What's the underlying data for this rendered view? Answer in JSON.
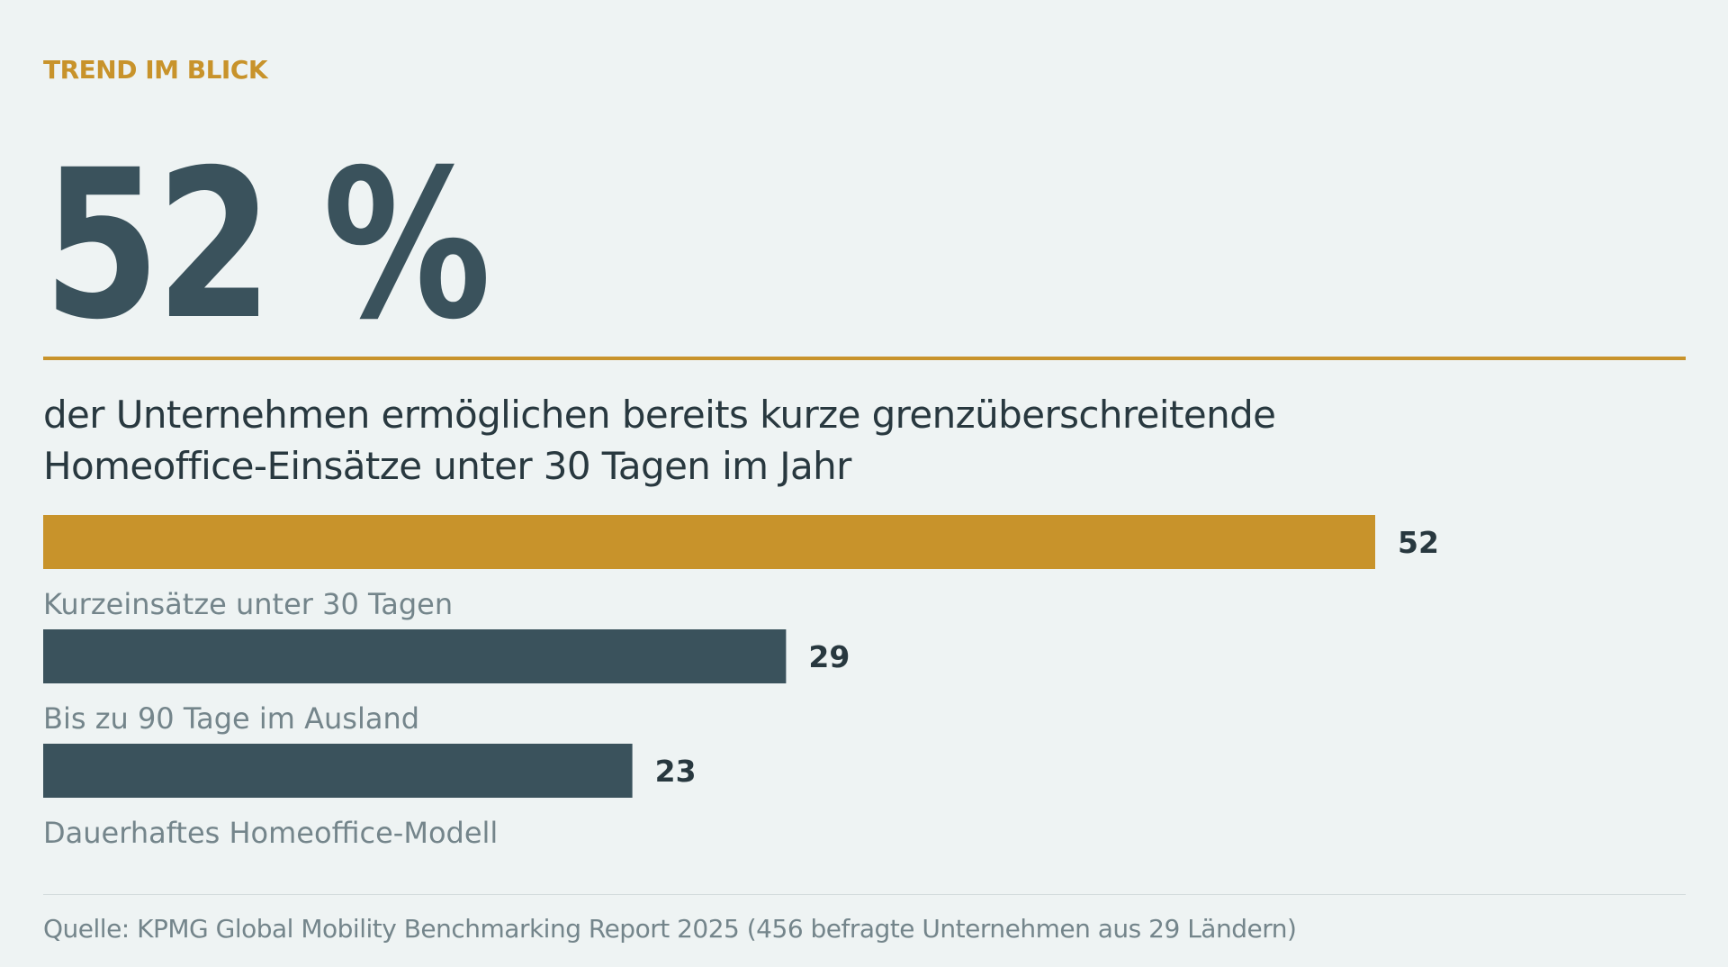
{
  "kicker": "TREND IM BLICK",
  "headline": "52 %",
  "subtitle_lines": [
    "der Unternehmen ermöglichen bereits kurze grenzüberschreitende",
    "Homeoffice-Einsätze unter 30 Tagen im Jahr"
  ],
  "source": "Quelle: KPMG Global Mobility Benchmarking Report 2025 (456 befragte Unternehmen aus 29 Ländern)",
  "colors": {
    "background": "#eef3f3",
    "accent": "#c8932b",
    "primary": "#3a525c",
    "label": "#74858b",
    "value": "#28383f",
    "rule_light": "#d3dbdc"
  },
  "chart_data": {
    "type": "bar",
    "orientation": "horizontal",
    "categories": [
      "Kurzeinsätze unter 30 Tagen",
      "Bis zu 90 Tage im Ausland",
      "Dauerhaftes Homeoffice-Modell"
    ],
    "values": [
      52,
      29,
      23
    ],
    "data_labels": [
      "52",
      "29",
      "23"
    ],
    "highlight_index": 0,
    "xlim": [
      0,
      60
    ],
    "grid": false,
    "legend": "none",
    "title": "",
    "xlabel": "",
    "ylabel": ""
  }
}
